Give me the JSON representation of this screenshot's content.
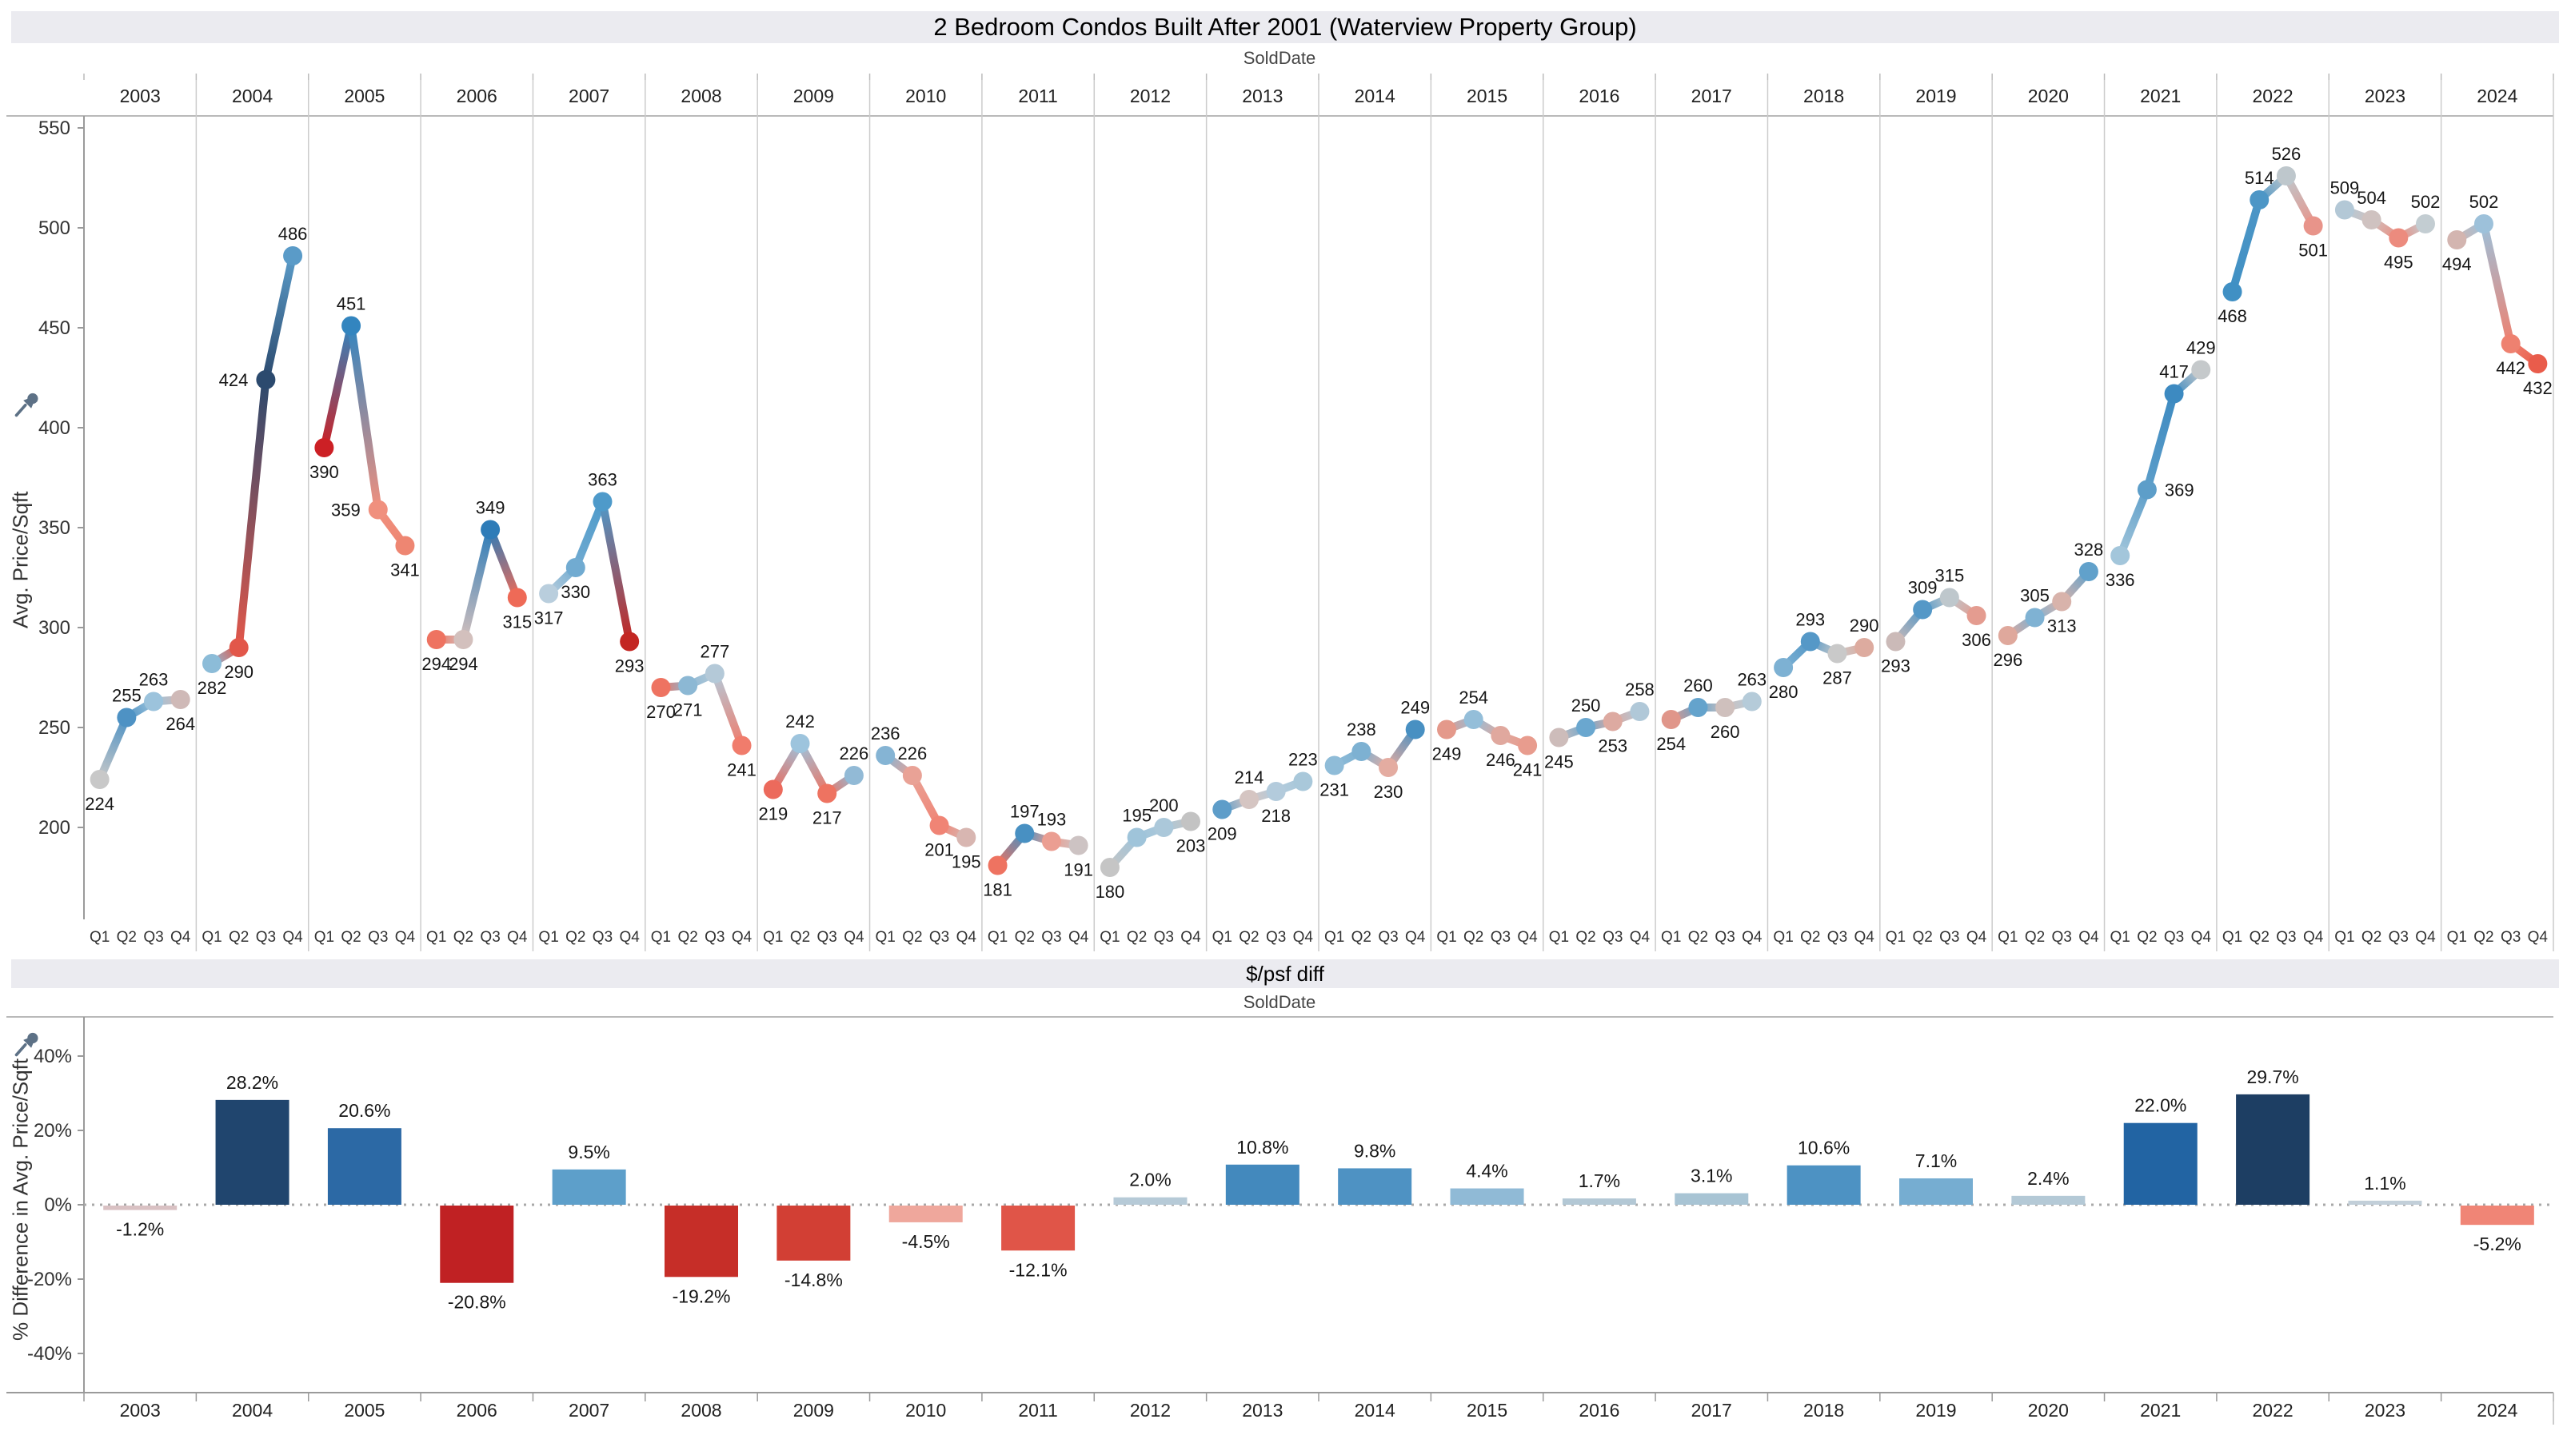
{
  "header": {
    "title": "2 Bedroom Condos Built After 2001 (Waterview Property Group)"
  },
  "top_chart": {
    "field_label": "SoldDate",
    "y_axis_label": "Avg. Price/Sqft",
    "pin_icon": "pushpin-icon"
  },
  "bottom_chart": {
    "title": "$/psf diff",
    "field_label": "SoldDate",
    "y_axis_label": "% Difference in Avg. Price/Sqft",
    "pin_icon": "pushpin-icon"
  },
  "chart_data": [
    {
      "type": "line",
      "title": "2 Bedroom Condos Built After 2001 (Waterview Property Group)",
      "xlabel": "SoldDate",
      "ylabel": "Avg. Price/Sqft",
      "ylim": [
        160,
        560
      ],
      "y_ticks": [
        550,
        500,
        450,
        400,
        350,
        300,
        250,
        200
      ],
      "quarter_labels": [
        "Q1",
        "Q2",
        "Q3",
        "Q4"
      ],
      "legend": "none",
      "grid": false,
      "years": [
        {
          "year": "2003",
          "values": [
            224,
            255,
            263,
            264
          ],
          "colors": [
            "#c8c8c8",
            "#4e92c4",
            "#9cc3dc",
            "#cfb9b7"
          ],
          "label_pos": [
            "below",
            "above",
            "above",
            "below"
          ]
        },
        {
          "year": "2004",
          "values": [
            282,
            290,
            424,
            486
          ],
          "colors": [
            "#8cbcd8",
            "#e2574a",
            "#2c4a6e",
            "#5a9bc8"
          ],
          "label_pos": [
            "below",
            "below",
            "left",
            "above"
          ]
        },
        {
          "year": "2005",
          "values": [
            390,
            451,
            359,
            341
          ],
          "colors": [
            "#cc2025",
            "#3385bf",
            "#f0907e",
            "#ee8672"
          ],
          "label_pos": [
            "below",
            "above",
            "left",
            "below"
          ]
        },
        {
          "year": "2006",
          "values": [
            294,
            294,
            349,
            315
          ],
          "colors": [
            "#ee7361",
            "#d3c0bd",
            "#2e7cb8",
            "#ee6a57"
          ],
          "label_pos": [
            "below",
            "below",
            "above",
            "below"
          ]
        },
        {
          "year": "2007",
          "values": [
            317,
            330,
            363,
            293
          ],
          "colors": [
            "#b9cedd",
            "#71abd1",
            "#4e9aca",
            "#c32622"
          ],
          "label_pos": [
            "below",
            "below",
            "above",
            "below"
          ]
        },
        {
          "year": "2008",
          "values": [
            270,
            271,
            277,
            241
          ],
          "colors": [
            "#ee7361",
            "#8cb8d4",
            "#b4c9d8",
            "#f07c6c"
          ],
          "label_pos": [
            "below",
            "below",
            "above",
            "below"
          ]
        },
        {
          "year": "2009",
          "values": [
            219,
            242,
            217,
            226
          ],
          "colors": [
            "#ec6a5c",
            "#9dc4dd",
            "#ee7361",
            "#92bad6"
          ],
          "label_pos": [
            "below",
            "above",
            "below",
            "above"
          ]
        },
        {
          "year": "2010",
          "values": [
            236,
            226,
            201,
            195
          ],
          "colors": [
            "#85b4d4",
            "#e9a296",
            "#f08475",
            "#d8b6b1"
          ],
          "label_pos": [
            "above",
            "above",
            "below",
            "below"
          ]
        },
        {
          "year": "2011",
          "values": [
            181,
            197,
            193,
            191
          ],
          "colors": [
            "#ee7361",
            "#4890c2",
            "#eb9e92",
            "#cdc3c3"
          ],
          "label_pos": [
            "below",
            "above",
            "above",
            "below"
          ]
        },
        {
          "year": "2012",
          "values": [
            180,
            195,
            200,
            203
          ],
          "colors": [
            "#c5c5c5",
            "#9fc4da",
            "#abc8da",
            "#c3c3c3"
          ],
          "label_pos": [
            "below",
            "above",
            "above",
            "below"
          ]
        },
        {
          "year": "2013",
          "values": [
            209,
            214,
            218,
            223
          ],
          "colors": [
            "#5e9dc9",
            "#d5c5c2",
            "#b3cbdc",
            "#a9c8da"
          ],
          "label_pos": [
            "below",
            "above",
            "below",
            "above"
          ]
        },
        {
          "year": "2014",
          "values": [
            231,
            238,
            230,
            249
          ],
          "colors": [
            "#8fbcd8",
            "#7db1d2",
            "#e4aca1",
            "#4890c2"
          ],
          "label_pos": [
            "below",
            "above",
            "below",
            "above"
          ]
        },
        {
          "year": "2015",
          "values": [
            249,
            254,
            246,
            241
          ],
          "colors": [
            "#e4998b",
            "#94bed9",
            "#e0a89e",
            "#e89c8e"
          ],
          "label_pos": [
            "below",
            "above",
            "below",
            "below"
          ]
        },
        {
          "year": "2016",
          "values": [
            245,
            250,
            253,
            258
          ],
          "colors": [
            "#cdbcba",
            "#6aa7cf",
            "#ddaaa1",
            "#b0c8d8"
          ],
          "label_pos": [
            "below",
            "above",
            "below",
            "above"
          ]
        },
        {
          "year": "2017",
          "values": [
            254,
            260,
            260,
            263
          ],
          "colors": [
            "#e0968a",
            "#64a3cc",
            "#cfc0bd",
            "#b5cbd9"
          ],
          "label_pos": [
            "below",
            "above",
            "below",
            "above"
          ]
        },
        {
          "year": "2018",
          "values": [
            280,
            293,
            287,
            290
          ],
          "colors": [
            "#7db1d3",
            "#5598c7",
            "#c9c9c9",
            "#ddab9f"
          ],
          "label_pos": [
            "below",
            "above",
            "below",
            "above"
          ]
        },
        {
          "year": "2019",
          "values": [
            293,
            309,
            315,
            306
          ],
          "colors": [
            "#cbbab8",
            "#5598c7",
            "#bec7cc",
            "#e49c90"
          ],
          "label_pos": [
            "below",
            "above",
            "above",
            "below"
          ]
        },
        {
          "year": "2020",
          "values": [
            296,
            305,
            313,
            328
          ],
          "colors": [
            "#dfa89c",
            "#7fb2d3",
            "#d8b3ab",
            "#61a1cb"
          ],
          "label_pos": [
            "below",
            "above",
            "below",
            "above"
          ]
        },
        {
          "year": "2021",
          "values": [
            336,
            369,
            417,
            429
          ],
          "colors": [
            "#a3c6db",
            "#5d9ec9",
            "#3d8ac1",
            "#c5c9cb"
          ],
          "label_pos": [
            "below",
            "right",
            "above",
            "above"
          ]
        },
        {
          "year": "2022",
          "values": [
            468,
            514,
            526,
            501
          ],
          "colors": [
            "#4090c4",
            "#4d96c6",
            "#bec7cc",
            "#e8948a"
          ],
          "label_pos": [
            "below",
            "above",
            "above",
            "below"
          ]
        },
        {
          "year": "2023",
          "values": [
            509,
            504,
            495,
            502
          ],
          "colors": [
            "#b3c8d6",
            "#cfc2c0",
            "#ec8b7e",
            "#c3cdd2"
          ],
          "label_pos": [
            "above",
            "above",
            "below",
            "above"
          ]
        },
        {
          "year": "2024",
          "values": [
            494,
            502,
            442,
            432
          ],
          "colors": [
            "#d3b5b0",
            "#9dc1da",
            "#ee8170",
            "#e95c4b"
          ],
          "label_pos": [
            "below",
            "above",
            "below",
            "below"
          ]
        }
      ]
    },
    {
      "type": "bar",
      "title": "$/psf diff",
      "xlabel": "SoldDate",
      "ylabel": "% Difference in Avg. Price/Sqft",
      "ylim": [
        -50,
        50
      ],
      "y_tick_values": [
        40,
        20,
        0,
        -20,
        -40
      ],
      "y_tick_labels": [
        "40%",
        "20%",
        "0%",
        "-20%",
        "-40%"
      ],
      "zero_line": "dotted",
      "categories": [
        "2003",
        "2004",
        "2005",
        "2006",
        "2007",
        "2008",
        "2009",
        "2010",
        "2011",
        "2012",
        "2013",
        "2014",
        "2015",
        "2016",
        "2017",
        "2018",
        "2019",
        "2020",
        "2021",
        "2022",
        "2023",
        "2024"
      ],
      "values": [
        -1.2,
        28.2,
        20.6,
        -20.8,
        9.5,
        -19.2,
        -14.8,
        -4.5,
        -12.1,
        2.0,
        10.8,
        9.8,
        4.4,
        1.7,
        3.1,
        10.6,
        7.1,
        2.4,
        22.0,
        29.7,
        1.1,
        -5.2
      ],
      "labels": [
        "-1.2%",
        "28.2%",
        "20.6%",
        "-20.8%",
        "9.5%",
        "-19.2%",
        "-14.8%",
        "-4.5%",
        "-12.1%",
        "2.0%",
        "10.8%",
        "9.8%",
        "4.4%",
        "1.7%",
        "3.1%",
        "10.6%",
        "7.1%",
        "2.4%",
        "22.0%",
        "29.7%",
        "1.1%",
        "-5.2%"
      ],
      "colors": [
        "#d9c1c3",
        "#20456e",
        "#2c69a5",
        "#c02123",
        "#5d9fca",
        "#c62e28",
        "#d23f34",
        "#efa79c",
        "#e05548",
        "#b6cad7",
        "#4389bd",
        "#4e92c3",
        "#90bad6",
        "#b3c8d5",
        "#a8c4d4",
        "#4d92c3",
        "#76add1",
        "#b4c9d6",
        "#2264a3",
        "#1d3e63",
        "#c2cfd9",
        "#f08576"
      ]
    }
  ]
}
